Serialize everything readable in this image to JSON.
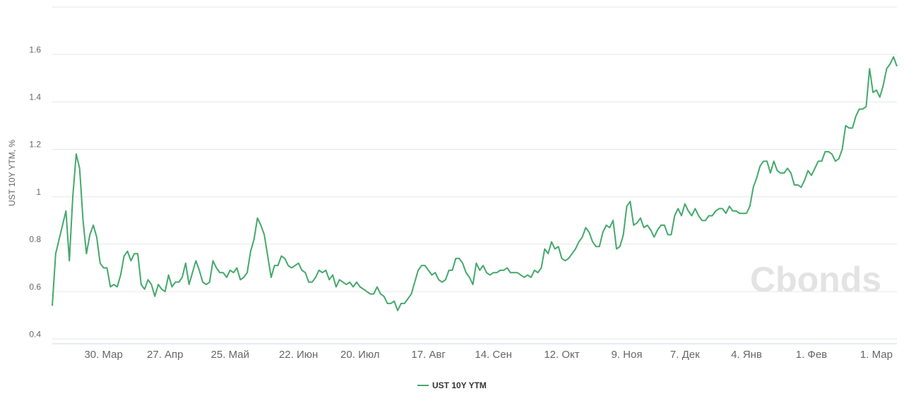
{
  "chart_data": {
    "type": "line",
    "y_label": "UST 10Y YTM, %",
    "watermark": "Cbonds",
    "categories": [
      null,
      null,
      null,
      null,
      null,
      null,
      null,
      null,
      null,
      null,
      null,
      null,
      null,
      null,
      null,
      "30. Мар",
      null,
      null,
      null,
      null,
      null,
      null,
      null,
      null,
      null,
      null,
      null,
      null,
      null,
      null,
      null,
      null,
      null,
      "27. Апр",
      null,
      null,
      null,
      null,
      null,
      null,
      null,
      null,
      null,
      null,
      null,
      null,
      null,
      null,
      null,
      null,
      null,
      null,
      "25. Май",
      null,
      null,
      null,
      null,
      null,
      null,
      null,
      null,
      null,
      null,
      null,
      null,
      null,
      null,
      null,
      null,
      null,
      null,
      null,
      "22. Июн",
      null,
      null,
      null,
      null,
      null,
      null,
      null,
      null,
      null,
      null,
      null,
      null,
      null,
      null,
      null,
      null,
      null,
      "20. Июл",
      null,
      null,
      null,
      null,
      null,
      null,
      null,
      null,
      null,
      null,
      null,
      null,
      null,
      null,
      null,
      null,
      null,
      null,
      null,
      "17. Авг",
      null,
      null,
      null,
      null,
      null,
      null,
      null,
      null,
      null,
      null,
      null,
      null,
      null,
      null,
      null,
      null,
      null,
      null,
      "14. Сен",
      null,
      null,
      null,
      null,
      null,
      null,
      null,
      null,
      null,
      null,
      null,
      null,
      null,
      null,
      null,
      null,
      null,
      null,
      null,
      "12. Окт",
      null,
      null,
      null,
      null,
      null,
      null,
      null,
      null,
      null,
      null,
      null,
      null,
      null,
      null,
      null,
      null,
      null,
      null,
      "9. Ноя",
      null,
      null,
      null,
      null,
      null,
      null,
      null,
      null,
      null,
      null,
      null,
      null,
      null,
      null,
      null,
      null,
      "7. Дек",
      null,
      null,
      null,
      null,
      null,
      null,
      null,
      null,
      null,
      null,
      null,
      null,
      null,
      null,
      null,
      null,
      null,
      "4. Янв",
      null,
      null,
      null,
      null,
      null,
      null,
      null,
      null,
      null,
      null,
      null,
      null,
      null,
      null,
      null,
      null,
      null,
      null,
      "1. Фев",
      null,
      null,
      null,
      null,
      null,
      null,
      null,
      null,
      null,
      null,
      null,
      null,
      null,
      null,
      null,
      null,
      null,
      null,
      "1. Мар",
      null,
      null,
      null,
      null,
      null,
      null
    ],
    "series": [
      {
        "name": "UST 10Y YTM",
        "color": "#43a96b",
        "values": [
          0.54,
          0.76,
          0.82,
          0.88,
          0.94,
          0.73,
          1.0,
          1.18,
          1.12,
          0.9,
          0.76,
          0.84,
          0.88,
          0.83,
          0.72,
          0.7,
          0.7,
          0.62,
          0.63,
          0.62,
          0.67,
          0.75,
          0.77,
          0.73,
          0.76,
          0.76,
          0.63,
          0.61,
          0.65,
          0.63,
          0.58,
          0.63,
          0.61,
          0.6,
          0.67,
          0.62,
          0.64,
          0.64,
          0.66,
          0.72,
          0.63,
          0.68,
          0.73,
          0.69,
          0.64,
          0.63,
          0.64,
          0.73,
          0.7,
          0.68,
          0.68,
          0.66,
          0.69,
          0.68,
          0.7,
          0.65,
          0.66,
          0.68,
          0.77,
          0.82,
          0.91,
          0.88,
          0.84,
          0.75,
          0.66,
          0.71,
          0.71,
          0.75,
          0.74,
          0.71,
          0.7,
          0.71,
          0.72,
          0.69,
          0.68,
          0.64,
          0.64,
          0.66,
          0.69,
          0.68,
          0.69,
          0.65,
          0.67,
          0.62,
          0.65,
          0.64,
          0.63,
          0.64,
          0.62,
          0.64,
          0.62,
          0.61,
          0.6,
          0.59,
          0.59,
          0.62,
          0.59,
          0.58,
          0.55,
          0.55,
          0.56,
          0.52,
          0.55,
          0.55,
          0.57,
          0.59,
          0.64,
          0.69,
          0.71,
          0.71,
          0.69,
          0.67,
          0.68,
          0.65,
          0.64,
          0.65,
          0.69,
          0.69,
          0.74,
          0.74,
          0.72,
          0.68,
          0.66,
          0.63,
          0.72,
          0.69,
          0.71,
          0.68,
          0.67,
          0.68,
          0.68,
          0.69,
          0.69,
          0.7,
          0.68,
          0.68,
          0.68,
          0.67,
          0.66,
          0.67,
          0.66,
          0.69,
          0.68,
          0.7,
          0.78,
          0.76,
          0.81,
          0.78,
          0.79,
          0.74,
          0.73,
          0.74,
          0.76,
          0.78,
          0.81,
          0.83,
          0.87,
          0.85,
          0.81,
          0.79,
          0.79,
          0.85,
          0.88,
          0.87,
          0.9,
          0.78,
          0.79,
          0.84,
          0.96,
          0.98,
          0.88,
          0.89,
          0.91,
          0.87,
          0.88,
          0.86,
          0.83,
          0.86,
          0.88,
          0.88,
          0.84,
          0.84,
          0.92,
          0.95,
          0.92,
          0.97,
          0.94,
          0.92,
          0.95,
          0.92,
          0.9,
          0.9,
          0.92,
          0.92,
          0.94,
          0.95,
          0.95,
          0.93,
          0.96,
          0.94,
          0.94,
          0.93,
          0.93,
          0.93,
          0.96,
          1.04,
          1.08,
          1.13,
          1.15,
          1.15,
          1.1,
          1.15,
          1.11,
          1.1,
          1.1,
          1.12,
          1.1,
          1.05,
          1.05,
          1.04,
          1.07,
          1.11,
          1.09,
          1.12,
          1.15,
          1.15,
          1.19,
          1.19,
          1.18,
          1.15,
          1.16,
          1.2,
          1.3,
          1.29,
          1.29,
          1.34,
          1.37,
          1.37,
          1.38,
          1.54,
          1.44,
          1.45,
          1.42,
          1.47,
          1.54,
          1.56,
          1.59,
          1.55
        ]
      }
    ],
    "ylim": [
      0.38,
      1.8
    ],
    "yticks": [
      0.4,
      0.6,
      0.8,
      1,
      1.2,
      1.4,
      1.6
    ],
    "grid": true
  }
}
